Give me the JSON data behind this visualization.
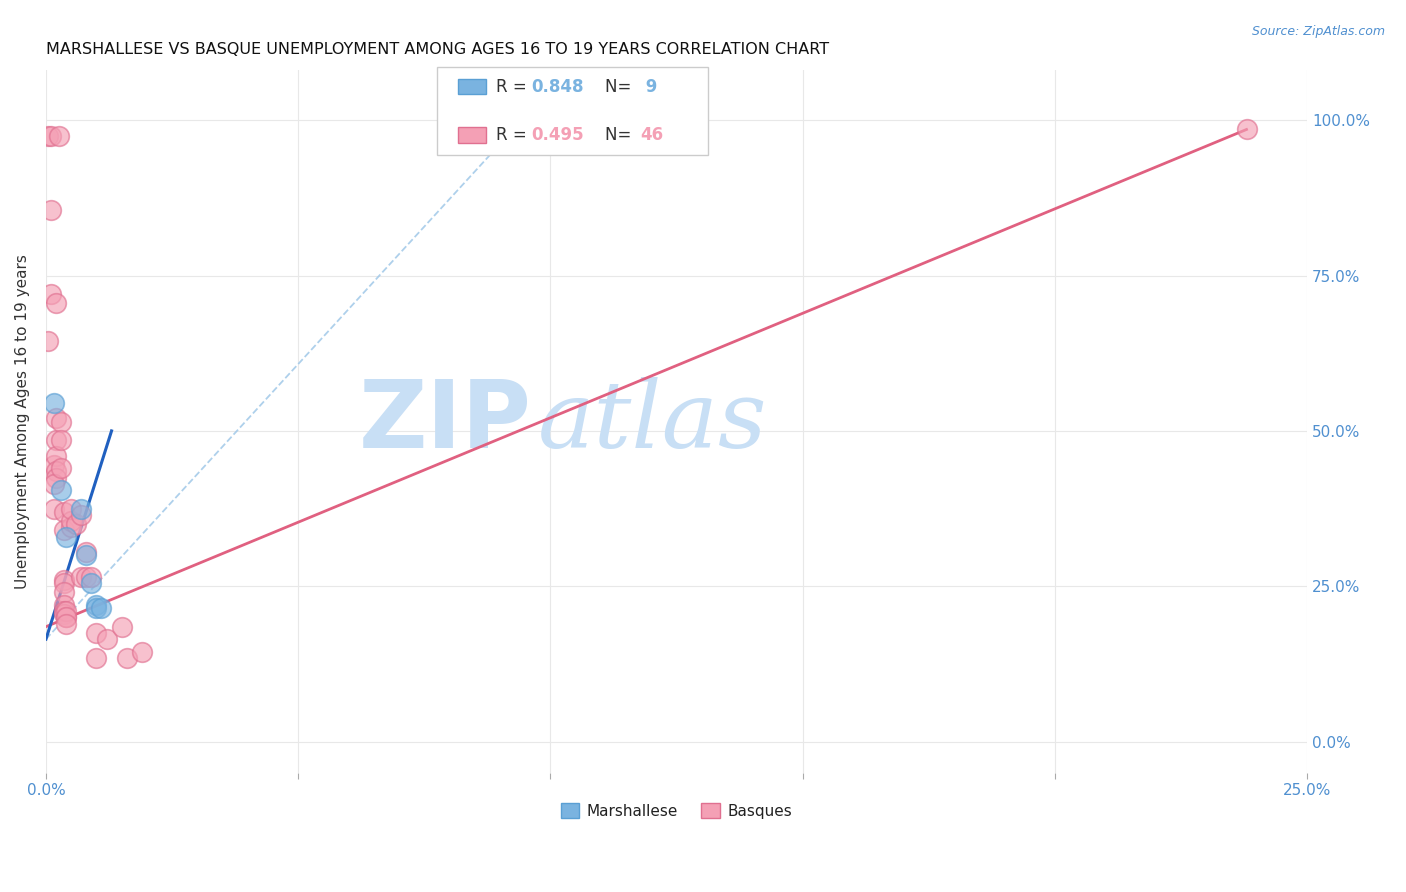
{
  "title": "MARSHALLESE VS BASQUE UNEMPLOYMENT AMONG AGES 16 TO 19 YEARS CORRELATION CHART",
  "source": "Source: ZipAtlas.com",
  "ylabel": "Unemployment Among Ages 16 to 19 years",
  "xlim": [
    0.0,
    0.25
  ],
  "ylim": [
    -0.05,
    1.08
  ],
  "x_ticks": [
    0.0,
    0.05,
    0.1,
    0.15,
    0.2,
    0.25
  ],
  "x_tick_labels": [
    "0.0%",
    "",
    "",
    "",
    "",
    "25.0%"
  ],
  "y_ticks": [
    0.0,
    0.25,
    0.5,
    0.75,
    1.0
  ],
  "y_tick_labels_right": [
    "0.0%",
    "25.0%",
    "50.0%",
    "75.0%",
    "100.0%"
  ],
  "marshallese_color": "#7ab3e0",
  "marshallese_edge": "#5a9fd4",
  "basque_color": "#f4a0b5",
  "basque_edge": "#e07090",
  "trend_marshallese_color": "#2060c0",
  "trend_basque_color": "#e06080",
  "dashed_color": "#a0c8e8",
  "marshallese_R": 0.848,
  "marshallese_N": 9,
  "basque_R": 0.495,
  "basque_N": 46,
  "marshallese_scatter": [
    [
      0.0015,
      0.545
    ],
    [
      0.003,
      0.405
    ],
    [
      0.004,
      0.33
    ],
    [
      0.007,
      0.375
    ],
    [
      0.008,
      0.3
    ],
    [
      0.009,
      0.255
    ],
    [
      0.01,
      0.22
    ],
    [
      0.01,
      0.215
    ],
    [
      0.011,
      0.215
    ]
  ],
  "basque_scatter": [
    [
      0.0005,
      0.975
    ],
    [
      0.001,
      0.975
    ],
    [
      0.001,
      0.855
    ],
    [
      0.0025,
      0.975
    ],
    [
      0.001,
      0.72
    ],
    [
      0.002,
      0.705
    ],
    [
      0.0005,
      0.645
    ],
    [
      0.0015,
      0.445
    ],
    [
      0.002,
      0.52
    ],
    [
      0.002,
      0.485
    ],
    [
      0.002,
      0.46
    ],
    [
      0.002,
      0.435
    ],
    [
      0.002,
      0.425
    ],
    [
      0.0015,
      0.415
    ],
    [
      0.0015,
      0.375
    ],
    [
      0.003,
      0.515
    ],
    [
      0.003,
      0.485
    ],
    [
      0.003,
      0.44
    ],
    [
      0.0035,
      0.37
    ],
    [
      0.0035,
      0.34
    ],
    [
      0.0035,
      0.26
    ],
    [
      0.0035,
      0.255
    ],
    [
      0.0035,
      0.24
    ],
    [
      0.0035,
      0.22
    ],
    [
      0.0035,
      0.21
    ],
    [
      0.0035,
      0.205
    ],
    [
      0.004,
      0.2
    ],
    [
      0.004,
      0.21
    ],
    [
      0.004,
      0.2
    ],
    [
      0.004,
      0.19
    ],
    [
      0.005,
      0.345
    ],
    [
      0.005,
      0.355
    ],
    [
      0.005,
      0.375
    ],
    [
      0.006,
      0.35
    ],
    [
      0.007,
      0.365
    ],
    [
      0.007,
      0.265
    ],
    [
      0.008,
      0.305
    ],
    [
      0.008,
      0.265
    ],
    [
      0.009,
      0.265
    ],
    [
      0.01,
      0.175
    ],
    [
      0.01,
      0.135
    ],
    [
      0.012,
      0.165
    ],
    [
      0.015,
      0.185
    ],
    [
      0.016,
      0.135
    ],
    [
      0.019,
      0.145
    ],
    [
      0.238,
      0.985
    ]
  ],
  "marshallese_trend": [
    0.0,
    0.165,
    0.013,
    0.5
  ],
  "basque_trend": [
    0.0,
    0.185,
    0.238,
    0.985
  ],
  "dashed_trend": [
    0.0,
    0.165,
    0.1,
    1.05
  ],
  "watermark_zip": "ZIP",
  "watermark_atlas": "atlas",
  "watermark_color": "#c8dff5",
  "background_color": "#ffffff",
  "grid_color": "#e8e8e8",
  "legend_R1": "R = 0.848",
  "legend_N1": "N =  9",
  "legend_R2": "R = 0.495",
  "legend_N2": "N = 46"
}
